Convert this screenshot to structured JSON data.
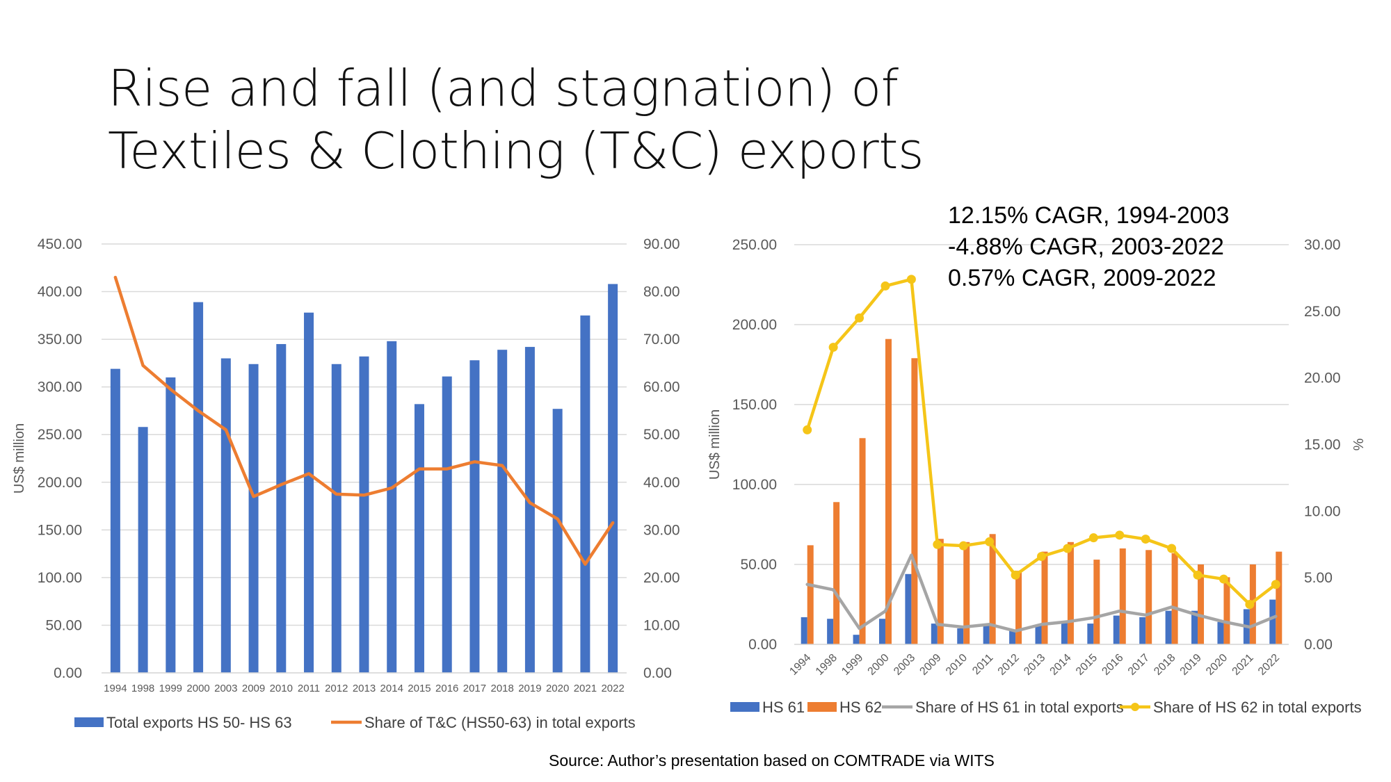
{
  "slide": {
    "title_line1": "Rise and fall (and stagnation) of",
    "title_line2": "Textiles & Clothing (T&C) exports",
    "annotations": [
      "12.15% CAGR, 1994-2003",
      "-4.88% CAGR, 2003-2022",
      "0.57% CAGR, 2009-2022"
    ],
    "source": "Source: Author’s presentation based on COMTRADE via WITS"
  },
  "chart_data": [
    {
      "type": "bar",
      "categories": [
        "1994",
        "1998",
        "1999",
        "2000",
        "2003",
        "2009",
        "2010",
        "2011",
        "2012",
        "2013",
        "2014",
        "2015",
        "2016",
        "2017",
        "2018",
        "2019",
        "2020",
        "2021",
        "2022"
      ],
      "ylabel": "US$ million",
      "y2label": "",
      "ylim": [
        0,
        450
      ],
      "y2lim": [
        0,
        90
      ],
      "yticks": [
        "0.00",
        "50.00",
        "100.00",
        "150.00",
        "200.00",
        "250.00",
        "300.00",
        "350.00",
        "400.00",
        "450.00"
      ],
      "y2ticks": [
        "0.00",
        "10.00",
        "20.00",
        "30.00",
        "40.00",
        "50.00",
        "60.00",
        "70.00",
        "80.00",
        "90.00"
      ],
      "grid": true,
      "legend_position": "bottom",
      "series": [
        {
          "name": "Total exports HS 50- HS 63",
          "kind": "bar",
          "axis": "left",
          "color": "#4472C4",
          "values": [
            319,
            258,
            310,
            389,
            330,
            324,
            345,
            378,
            324,
            332,
            348,
            282,
            311,
            328,
            339,
            342,
            277,
            375,
            408
          ]
        },
        {
          "name": "Share of T&C (HS50-63) in total exports",
          "kind": "line",
          "axis": "right",
          "color": "#ED7D31",
          "values": [
            83.0,
            64.5,
            59.5,
            55.0,
            51.0,
            37.0,
            39.5,
            41.8,
            37.5,
            37.3,
            38.8,
            42.8,
            42.8,
            44.3,
            43.5,
            35.7,
            32.3,
            22.8,
            31.5
          ]
        }
      ]
    },
    {
      "type": "bar",
      "categories": [
        "1994",
        "1998",
        "1999",
        "2000",
        "2003",
        "2009",
        "2010",
        "2011",
        "2012",
        "2013",
        "2014",
        "2015",
        "2016",
        "2017",
        "2018",
        "2019",
        "2020",
        "2021",
        "2022"
      ],
      "ylabel": "US$ million",
      "y2label": "%",
      "ylim": [
        0,
        250
      ],
      "y2lim": [
        0,
        30
      ],
      "yticks": [
        "0.00",
        "50.00",
        "100.00",
        "150.00",
        "200.00",
        "250.00"
      ],
      "y2ticks": [
        "0.00",
        "5.00",
        "10.00",
        "15.00",
        "20.00",
        "25.00",
        "30.00"
      ],
      "grid": true,
      "legend_position": "bottom",
      "series": [
        {
          "name": "HS 61",
          "kind": "bar",
          "axis": "left",
          "color": "#4472C4",
          "values": [
            17,
            16,
            6,
            16,
            44,
            13,
            10,
            13,
            9,
            12,
            14,
            13,
            18,
            17,
            21,
            21,
            14,
            22,
            28
          ]
        },
        {
          "name": "HS 62",
          "kind": "bar",
          "axis": "left",
          "color": "#ED7D31",
          "values": [
            62,
            89,
            129,
            191,
            179,
            66,
            64,
            69,
            46,
            58,
            64,
            53,
            60,
            59,
            57,
            50,
            42,
            50,
            58
          ]
        },
        {
          "name": "Share of HS 61 in total exports",
          "kind": "line",
          "axis": "right",
          "color": "#A5A5A5",
          "values": [
            4.5,
            4.1,
            1.2,
            2.5,
            6.7,
            1.5,
            1.3,
            1.5,
            1.0,
            1.5,
            1.7,
            2.0,
            2.5,
            2.2,
            2.8,
            2.2,
            1.7,
            1.3,
            2.1
          ]
        },
        {
          "name": "Share of HS 62 in total exports",
          "kind": "line",
          "axis": "right",
          "color": "#F5C518",
          "markers": true,
          "values": [
            16.1,
            22.3,
            24.5,
            26.9,
            27.4,
            7.5,
            7.4,
            7.7,
            5.2,
            6.6,
            7.2,
            8.0,
            8.2,
            7.9,
            7.2,
            5.2,
            4.9,
            3.0,
            4.5
          ]
        }
      ]
    }
  ]
}
